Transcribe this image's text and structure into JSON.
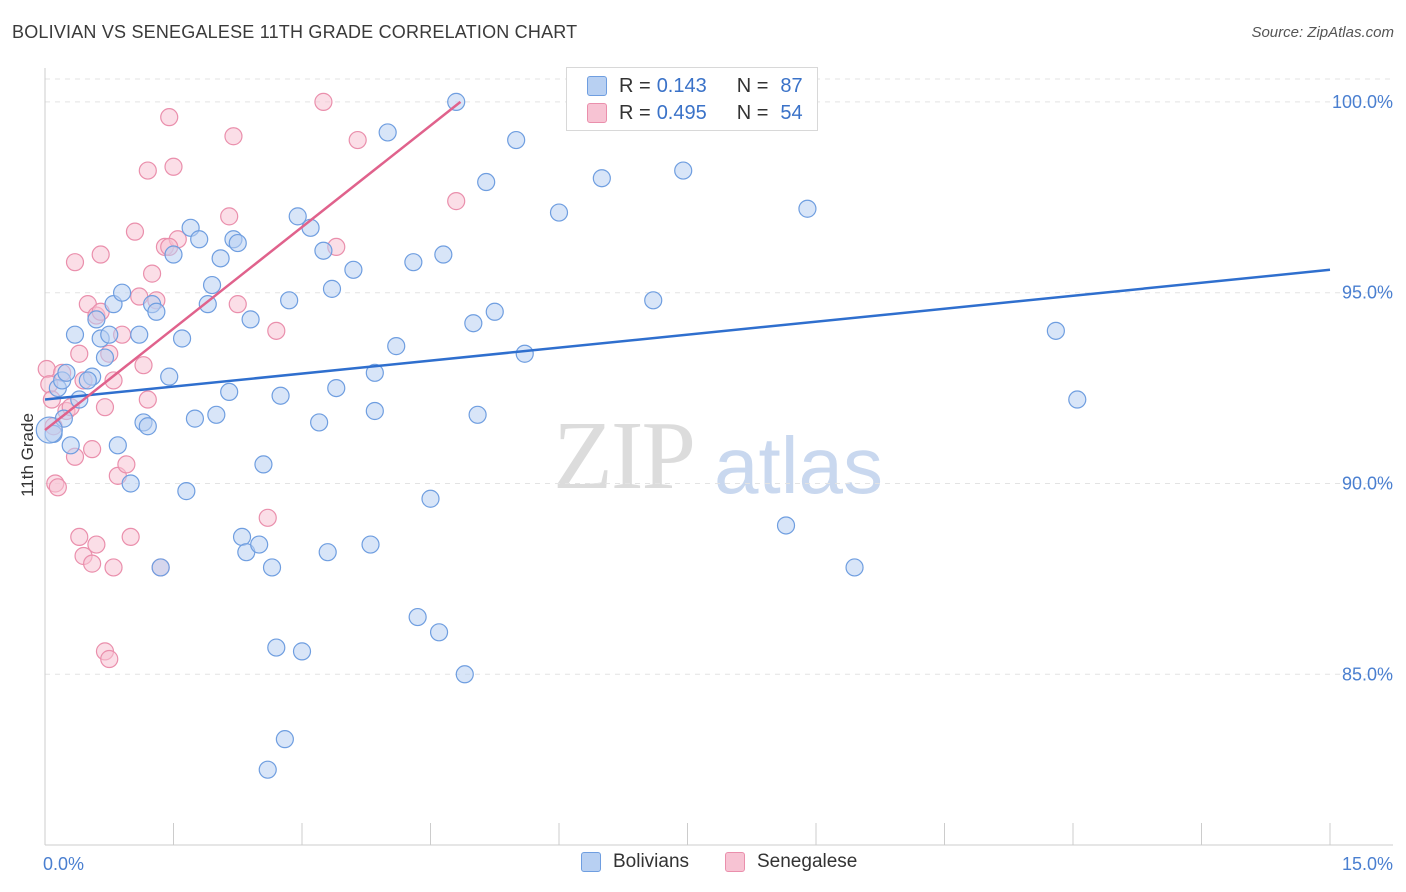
{
  "title": "BOLIVIAN VS SENEGALESE 11TH GRADE CORRELATION CHART",
  "source": "Source: ZipAtlas.com",
  "watermark": {
    "zip": "ZIP",
    "atlas": "atlas"
  },
  "legend": {
    "rows": [
      {
        "r_label": "R =",
        "r_value": "0.143",
        "n_label": "N =",
        "n_value": "87"
      },
      {
        "r_label": "R =",
        "r_value": "0.495",
        "n_label": "N =",
        "n_value": "54"
      }
    ]
  },
  "bottom_legend": [
    "Bolivians",
    "Senegalese"
  ],
  "colors": {
    "blue_fill": "#b8d0f2",
    "blue_stroke": "#6f9ee0",
    "blue_line": "#2f6fce",
    "pink_fill": "#f7c3d3",
    "pink_stroke": "#ea8fac",
    "pink_line": "#e0628c",
    "tick": "#4a7fd0",
    "grid": "#e3e3e3"
  },
  "chart_data": {
    "type": "scatter",
    "title": "BOLIVIAN VS SENEGALESE 11TH GRADE CORRELATION CHART",
    "xlabel": "",
    "ylabel": "11th Grade",
    "xlim": [
      0.0,
      15.0
    ],
    "ylim": [
      80.5,
      100.6
    ],
    "x_tick_labels": [
      "0.0%",
      "15.0%"
    ],
    "y_ticks": [
      85.0,
      90.0,
      95.0,
      100.0
    ],
    "y_tick_labels": [
      "85.0%",
      "90.0%",
      "95.0%",
      "100.0%"
    ],
    "grid": true,
    "series": [
      {
        "name": "Bolivians",
        "r": 0.143,
        "n": 87,
        "trend": {
          "x": [
            0.0,
            15.0
          ],
          "y": [
            92.2,
            95.6
          ]
        },
        "points": [
          [
            0.1,
            91.3
          ],
          [
            0.15,
            92.5
          ],
          [
            0.2,
            92.7
          ],
          [
            0.22,
            91.7
          ],
          [
            0.25,
            92.9
          ],
          [
            0.3,
            91.0
          ],
          [
            0.35,
            93.9
          ],
          [
            0.4,
            92.2
          ],
          [
            0.55,
            92.8
          ],
          [
            0.6,
            94.3
          ],
          [
            0.65,
            93.8
          ],
          [
            0.7,
            93.3
          ],
          [
            0.75,
            93.9
          ],
          [
            0.8,
            94.7
          ],
          [
            0.85,
            91.0
          ],
          [
            0.9,
            95.0
          ],
          [
            1.0,
            90.0
          ],
          [
            1.1,
            93.9
          ],
          [
            1.15,
            91.6
          ],
          [
            1.25,
            94.7
          ],
          [
            1.3,
            94.5
          ],
          [
            1.35,
            87.8
          ],
          [
            1.45,
            92.8
          ],
          [
            1.5,
            96.0
          ],
          [
            1.6,
            93.8
          ],
          [
            1.65,
            89.8
          ],
          [
            1.7,
            96.7
          ],
          [
            1.75,
            91.7
          ],
          [
            1.8,
            96.4
          ],
          [
            1.9,
            94.7
          ],
          [
            1.95,
            95.2
          ],
          [
            2.0,
            91.8
          ],
          [
            2.05,
            95.9
          ],
          [
            2.15,
            92.4
          ],
          [
            2.2,
            96.4
          ],
          [
            2.25,
            96.3
          ],
          [
            2.3,
            88.6
          ],
          [
            2.35,
            88.2
          ],
          [
            2.4,
            94.3
          ],
          [
            2.5,
            88.4
          ],
          [
            2.55,
            90.5
          ],
          [
            2.65,
            87.8
          ],
          [
            2.7,
            85.7
          ],
          [
            2.75,
            92.3
          ],
          [
            2.85,
            94.8
          ],
          [
            2.95,
            97.0
          ],
          [
            3.0,
            85.6
          ],
          [
            3.1,
            96.7
          ],
          [
            3.25,
            96.1
          ],
          [
            3.35,
            95.1
          ],
          [
            3.4,
            92.5
          ],
          [
            3.6,
            95.6
          ],
          [
            3.8,
            88.4
          ],
          [
            3.85,
            92.9
          ],
          [
            3.85,
            91.9
          ],
          [
            4.0,
            99.2
          ],
          [
            4.1,
            93.6
          ],
          [
            4.3,
            95.8
          ],
          [
            4.35,
            86.5
          ],
          [
            4.5,
            89.6
          ],
          [
            4.6,
            86.1
          ],
          [
            4.65,
            96.0
          ],
          [
            4.8,
            100.0
          ],
          [
            4.9,
            85.0
          ],
          [
            5.0,
            94.2
          ],
          [
            5.05,
            91.8
          ],
          [
            5.15,
            97.9
          ],
          [
            5.25,
            94.5
          ],
          [
            5.5,
            99.0
          ],
          [
            5.6,
            93.4
          ],
          [
            6.0,
            97.1
          ],
          [
            6.5,
            98.0
          ],
          [
            6.75,
            100.0
          ],
          [
            7.1,
            94.8
          ],
          [
            7.45,
            98.2
          ],
          [
            8.3,
            100.0
          ],
          [
            8.65,
            88.9
          ],
          [
            8.9,
            97.2
          ],
          [
            9.45,
            87.8
          ],
          [
            11.8,
            94.0
          ],
          [
            12.05,
            92.2
          ],
          [
            3.3,
            88.2
          ],
          [
            2.8,
            83.3
          ],
          [
            2.6,
            82.5
          ],
          [
            1.2,
            91.5
          ],
          [
            0.5,
            92.7
          ],
          [
            3.2,
            91.6
          ]
        ]
      },
      {
        "name": "Senegalese",
        "r": 0.495,
        "n": 54,
        "trend": {
          "x": [
            0.0,
            4.85
          ],
          "y": [
            91.4,
            100.0
          ]
        },
        "points": [
          [
            0.02,
            93.0
          ],
          [
            0.05,
            92.6
          ],
          [
            0.08,
            92.2
          ],
          [
            0.1,
            91.5
          ],
          [
            0.12,
            90.0
          ],
          [
            0.15,
            89.9
          ],
          [
            0.2,
            92.9
          ],
          [
            0.25,
            91.9
          ],
          [
            0.3,
            92.0
          ],
          [
            0.35,
            95.8
          ],
          [
            0.4,
            93.4
          ],
          [
            0.45,
            92.7
          ],
          [
            0.5,
            94.7
          ],
          [
            0.55,
            90.9
          ],
          [
            0.6,
            94.4
          ],
          [
            0.65,
            96.0
          ],
          [
            0.7,
            92.0
          ],
          [
            0.75,
            93.4
          ],
          [
            0.8,
            92.7
          ],
          [
            0.85,
            90.2
          ],
          [
            0.9,
            93.9
          ],
          [
            0.95,
            90.5
          ],
          [
            1.0,
            88.6
          ],
          [
            1.05,
            96.6
          ],
          [
            1.1,
            94.9
          ],
          [
            1.15,
            93.1
          ],
          [
            1.2,
            92.2
          ],
          [
            1.25,
            95.5
          ],
          [
            1.3,
            94.8
          ],
          [
            1.35,
            87.8
          ],
          [
            1.4,
            96.2
          ],
          [
            1.45,
            99.6
          ],
          [
            1.5,
            98.3
          ],
          [
            1.55,
            96.4
          ],
          [
            2.15,
            97.0
          ],
          [
            2.2,
            99.1
          ],
          [
            2.25,
            94.7
          ],
          [
            2.6,
            89.1
          ],
          [
            2.7,
            94.0
          ],
          [
            3.25,
            100.0
          ],
          [
            3.4,
            96.2
          ],
          [
            3.65,
            99.0
          ],
          [
            4.8,
            97.4
          ],
          [
            0.4,
            88.6
          ],
          [
            0.45,
            88.1
          ],
          [
            0.55,
            87.9
          ],
          [
            0.6,
            88.4
          ],
          [
            0.7,
            85.6
          ],
          [
            0.75,
            85.4
          ],
          [
            0.8,
            87.8
          ],
          [
            1.2,
            98.2
          ],
          [
            0.35,
            90.7
          ],
          [
            0.65,
            94.5
          ],
          [
            1.45,
            96.2
          ]
        ]
      }
    ]
  }
}
